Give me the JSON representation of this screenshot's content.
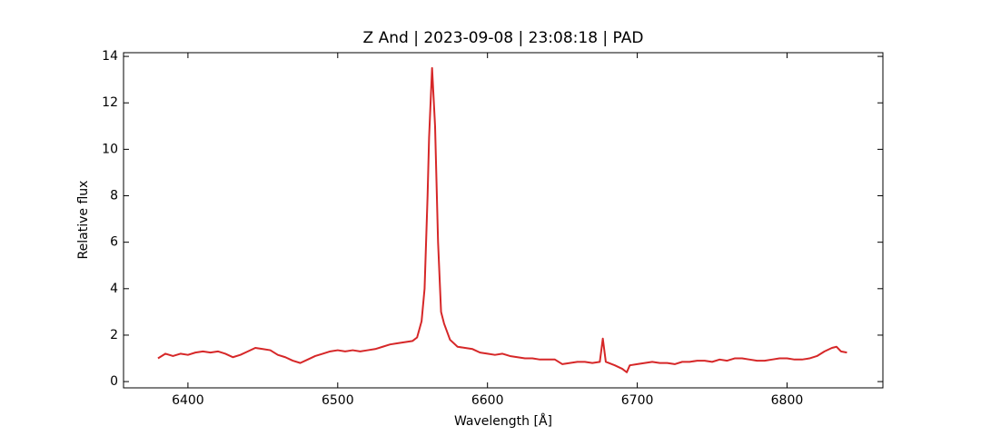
{
  "chart_data": {
    "type": "line",
    "title": "Z And | 2023-09-08 | 23:08:18 | PAD",
    "x_label": "Wavelength [Å]",
    "y_label": "Relative flux",
    "xlim": [
      6357,
      6864
    ],
    "ylim": [
      -0.27,
      14.16
    ],
    "xticks": [
      6400,
      6500,
      6600,
      6700,
      6800
    ],
    "yticks": [
      0,
      2,
      4,
      6,
      8,
      10,
      12,
      14
    ],
    "x": [
      6380,
      6385,
      6390,
      6395,
      6400,
      6405,
      6410,
      6415,
      6420,
      6425,
      6430,
      6435,
      6440,
      6445,
      6450,
      6455,
      6460,
      6465,
      6470,
      6475,
      6480,
      6485,
      6490,
      6495,
      6500,
      6505,
      6510,
      6515,
      6520,
      6525,
      6530,
      6535,
      6540,
      6545,
      6550,
      6553,
      6556,
      6558,
      6560,
      6561,
      6563,
      6565,
      6567,
      6569,
      6571,
      6575,
      6580,
      6585,
      6590,
      6595,
      6600,
      6605,
      6610,
      6615,
      6620,
      6625,
      6630,
      6635,
      6640,
      6645,
      6650,
      6655,
      6660,
      6665,
      6670,
      6675,
      6677,
      6679,
      6685,
      6690,
      6693,
      6695,
      6700,
      6705,
      6710,
      6715,
      6720,
      6725,
      6730,
      6735,
      6740,
      6745,
      6750,
      6755,
      6760,
      6765,
      6770,
      6775,
      6780,
      6785,
      6790,
      6795,
      6800,
      6805,
      6810,
      6815,
      6820,
      6825,
      6830,
      6833,
      6836,
      6840
    ],
    "series": [
      {
        "color": "#d62728",
        "values": [
          1.0,
          1.2,
          1.1,
          1.2,
          1.15,
          1.25,
          1.3,
          1.25,
          1.3,
          1.2,
          1.05,
          1.15,
          1.3,
          1.45,
          1.4,
          1.35,
          1.15,
          1.05,
          0.9,
          0.8,
          0.95,
          1.1,
          1.2,
          1.3,
          1.35,
          1.3,
          1.35,
          1.3,
          1.35,
          1.4,
          1.5,
          1.6,
          1.65,
          1.7,
          1.75,
          1.9,
          2.6,
          4.0,
          8.0,
          10.5,
          13.5,
          11.0,
          6.0,
          3.0,
          2.5,
          1.8,
          1.5,
          1.45,
          1.4,
          1.25,
          1.2,
          1.15,
          1.2,
          1.1,
          1.05,
          1.0,
          1.0,
          0.95,
          0.95,
          0.95,
          0.75,
          0.8,
          0.85,
          0.85,
          0.8,
          0.85,
          1.85,
          0.85,
          0.7,
          0.55,
          0.4,
          0.7,
          0.75,
          0.8,
          0.85,
          0.8,
          0.8,
          0.75,
          0.85,
          0.85,
          0.9,
          0.9,
          0.85,
          0.95,
          0.9,
          1.0,
          1.0,
          0.95,
          0.9,
          0.9,
          0.95,
          1.0,
          1.0,
          0.95,
          0.95,
          1.0,
          1.1,
          1.3,
          1.45,
          1.5,
          1.3,
          1.25
        ]
      }
    ]
  }
}
